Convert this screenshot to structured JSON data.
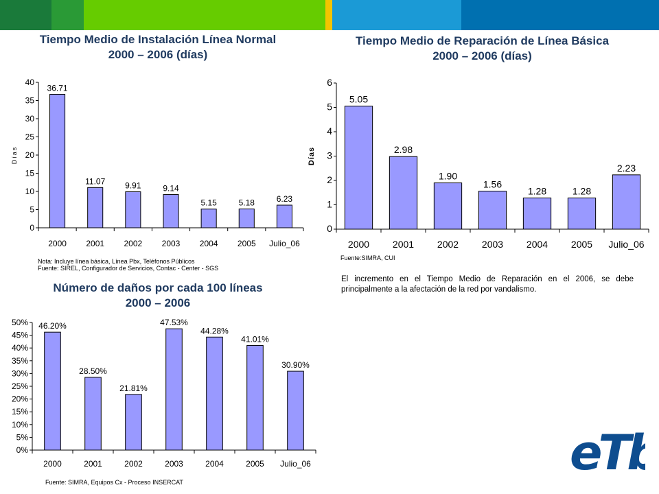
{
  "header": {
    "colors": [
      "#1a7a3a",
      "#2a9a36",
      "#66cc00",
      "#f5c400",
      "#1b9ad6",
      "#0070b0"
    ]
  },
  "chart1": {
    "title_line1": "Tiempo Medio de Instalación Línea Normal",
    "title_line2": "2000 – 2006 (días)",
    "note": "Nota: Incluye línea básica, Línea Pbx, Teléfonos Públicos",
    "source": "Fuente: SIREL, Configurador de Servicios, Contac - Center -  SGS"
  },
  "chart2": {
    "title_line1": "Tiempo Medio de Reparación de Línea Básica",
    "title_line2": "2000 – 2006 (días)",
    "source": "Fuente:SIMRA, CUI",
    "comment": "El incremento en el Tiempo Medio de Reparación  en el 2006, se debe principalmente a la afectación de la red por vandalismo."
  },
  "chart3": {
    "title_line1": "Número de daños por cada 100 líneas",
    "title_line2": "2000 – 2006",
    "source": "Fuente: SIMRA, Equipos Cx - Proceso INSERCAT"
  },
  "logo": {
    "name": "etb-logo",
    "text": "eTb",
    "color": "#0e4d8f"
  },
  "chart_data": [
    {
      "type": "bar",
      "title": "Tiempo Medio de Instalación Línea Normal 2000 – 2006 (días)",
      "categories": [
        "2000",
        "2001",
        "2002",
        "2003",
        "2004",
        "2005",
        "Julio_06"
      ],
      "values": [
        36.71,
        11.07,
        9.91,
        9.14,
        5.15,
        5.18,
        6.23
      ],
      "labels": [
        "36.71",
        "11.07",
        "9.91",
        "9.14",
        "5.15",
        "5.18",
        "6.23"
      ],
      "ylabel": "Días",
      "ylim": [
        0,
        40
      ],
      "yticks": [
        "0",
        "5",
        "10",
        "15",
        "20",
        "25",
        "30",
        "35",
        "40"
      ],
      "bar_color": "#9999ff",
      "grid": false
    },
    {
      "type": "bar",
      "title": "Tiempo Medio de Reparación de Línea Básica 2000 – 2006 (días)",
      "categories": [
        "2000",
        "2001",
        "2002",
        "2003",
        "2004",
        "2005",
        "Julio_06"
      ],
      "values": [
        5.05,
        2.98,
        1.9,
        1.56,
        1.28,
        1.28,
        2.23
      ],
      "labels": [
        "5.05",
        "2.98",
        "1.90",
        "1.56",
        "1.28",
        "1.28",
        "2.23"
      ],
      "ylabel": "Días",
      "ylim": [
        0,
        6
      ],
      "yticks": [
        "0",
        "1",
        "2",
        "3",
        "4",
        "5",
        "6"
      ],
      "bar_color": "#9999ff",
      "grid": false
    },
    {
      "type": "bar",
      "title": "Número de daños por cada 100 líneas 2000 – 2006",
      "categories": [
        "2000",
        "2001",
        "2002",
        "2003",
        "2004",
        "2005",
        "Julio_06"
      ],
      "values": [
        46.2,
        28.5,
        21.81,
        47.53,
        44.28,
        41.01,
        30.9
      ],
      "labels": [
        "46.20%",
        "28.50%",
        "21.81%",
        "47.53%",
        "44.28%",
        "41.01%",
        "30.90%"
      ],
      "ylabel": "",
      "ylim": [
        0,
        50
      ],
      "yticks": [
        "0%",
        "5%",
        "10%",
        "15%",
        "20%",
        "25%",
        "30%",
        "35%",
        "40%",
        "45%",
        "50%"
      ],
      "bar_color": "#9999ff",
      "grid": false
    }
  ]
}
